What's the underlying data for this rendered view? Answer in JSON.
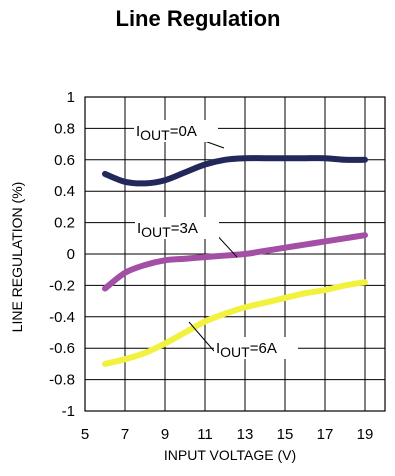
{
  "chart_data": {
    "type": "line",
    "title": "Line Regulation",
    "xlabel": "INPUT VOLTAGE (V)",
    "ylabel": "LINE REGULATION (%)",
    "xlim": [
      5,
      20
    ],
    "ylim": [
      -1,
      1
    ],
    "x_ticks": [
      5,
      7,
      9,
      11,
      13,
      15,
      17,
      19
    ],
    "y_ticks": [
      1,
      0.8,
      0.6,
      0.4,
      0.2,
      0,
      -0.2,
      -0.4,
      -0.6,
      -0.8,
      -1
    ],
    "x_tick_labels": [
      "5",
      "7",
      "9",
      "11",
      "13",
      "15",
      "17",
      "19"
    ],
    "y_tick_labels": [
      "1",
      "0.8",
      "0.6",
      "0.4",
      "0.2",
      "0",
      "-0.2",
      "-0.4",
      "-0.6",
      "-0.8",
      "-1"
    ],
    "grid": true,
    "series": [
      {
        "name": "IOUT=0A",
        "label_prefix": "I",
        "label_subscript": "OUT",
        "label_suffix": "=0A",
        "color": "#22285a",
        "x": [
          6,
          7,
          8,
          9,
          10,
          11,
          12,
          13,
          14,
          15,
          16,
          17,
          18,
          19
        ],
        "values": [
          0.51,
          0.46,
          0.45,
          0.47,
          0.52,
          0.57,
          0.6,
          0.61,
          0.61,
          0.61,
          0.61,
          0.61,
          0.6,
          0.6
        ]
      },
      {
        "name": "IOUT=3A",
        "label_prefix": "I",
        "label_subscript": "OUT",
        "label_suffix": "=3A",
        "color": "#a34fa5",
        "x": [
          6,
          7,
          8,
          9,
          10,
          11,
          12,
          13,
          14,
          15,
          16,
          17,
          18,
          19
        ],
        "values": [
          -0.22,
          -0.12,
          -0.07,
          -0.04,
          -0.03,
          -0.02,
          -0.01,
          0.0,
          0.02,
          0.04,
          0.06,
          0.08,
          0.1,
          0.12
        ]
      },
      {
        "name": "IOUT=6A",
        "label_prefix": "I",
        "label_subscript": "OUT",
        "label_suffix": "=6A",
        "color": "#f1f13e",
        "x": [
          6,
          7,
          8,
          9,
          10,
          11,
          12,
          13,
          14,
          15,
          16,
          17,
          18,
          19
        ],
        "values": [
          -0.7,
          -0.67,
          -0.63,
          -0.57,
          -0.5,
          -0.43,
          -0.38,
          -0.34,
          -0.31,
          -0.28,
          -0.25,
          -0.23,
          -0.2,
          -0.18
        ]
      }
    ]
  }
}
